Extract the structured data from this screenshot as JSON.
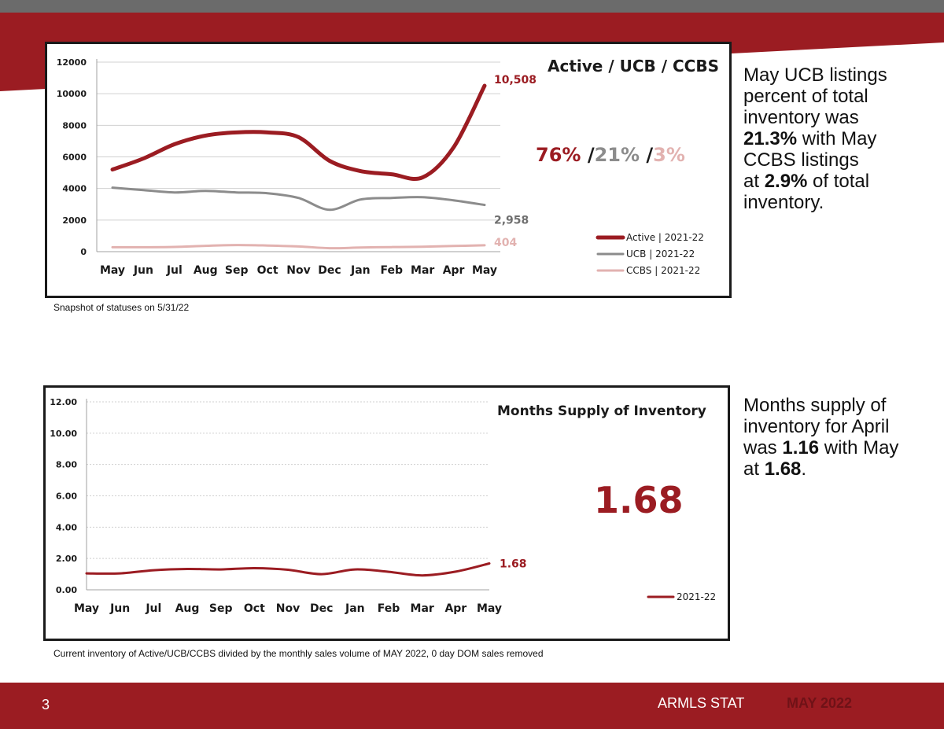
{
  "colors": {
    "brand_red": "#9b1c22",
    "active": "#9b1c22",
    "ucb": "#8c8c8c",
    "ccbs": "#e2b2b0",
    "grey_bar": "#6b6b6b"
  },
  "chart1": {
    "title": "Active / UCB / CCBS",
    "pct_active": "76%",
    "pct_ucb": "21%",
    "pct_ccbs": "3%",
    "slash": "/",
    "note": "Snapshot of statuses on 5/31/22"
  },
  "chart2": {
    "title": "Months Supply of Inventory",
    "big_value": "1.68",
    "note": "Current inventory of Active/UCB/CCBS divided by the monthly sales volume of MAY 2022, 0 day DOM sales removed"
  },
  "side1": {
    "line1": "May UCB listings",
    "line2": "percent of total",
    "line3": "inventory was",
    "bold1": "21.3%",
    "text1": " with May",
    "line5": "CCBS listings",
    "line6a": "at ",
    "bold2": "2.9%",
    "line6b": " of total",
    "line7": "inventory."
  },
  "side2": {
    "line1": "Months supply of",
    "line2": "inventory for April",
    "line3a": "was ",
    "bold1": "1.16",
    "line3b": " with May",
    "line4a": "at ",
    "bold2": "1.68",
    "line4b": "."
  },
  "footer": {
    "page": "3",
    "brand": "ARMLS STAT",
    "month": "MAY 2022"
  },
  "chart_data": [
    {
      "type": "line",
      "title": "Active / UCB / CCBS",
      "categories": [
        "May",
        "Jun",
        "Jul",
        "Aug",
        "Sep",
        "Oct",
        "Nov",
        "Dec",
        "Jan",
        "Feb",
        "Mar",
        "Apr",
        "May"
      ],
      "ylim": [
        0,
        12000
      ],
      "yticks": [
        "0",
        "2000",
        "4000",
        "6000",
        "8000",
        "10000",
        "12000"
      ],
      "grid": true,
      "legend_position": "bottom-right",
      "series": [
        {
          "name": "Active | 2021-22",
          "values": [
            5200,
            5900,
            6800,
            7350,
            7550,
            7550,
            7250,
            5750,
            5100,
            4900,
            4700,
            6600,
            10508
          ],
          "end_label": "10,508"
        },
        {
          "name": "UCB | 2021-22",
          "values": [
            4050,
            3900,
            3750,
            3850,
            3750,
            3700,
            3400,
            2650,
            3300,
            3400,
            3450,
            3250,
            2958
          ],
          "end_label": "2,958"
        },
        {
          "name": "CCBS | 2021-22",
          "values": [
            280,
            280,
            300,
            370,
            420,
            390,
            330,
            220,
            260,
            290,
            310,
            360,
            404
          ],
          "end_label": "404"
        }
      ]
    },
    {
      "type": "line",
      "title": "Months Supply of Inventory",
      "categories": [
        "May",
        "Jun",
        "Jul",
        "Aug",
        "Sep",
        "Oct",
        "Nov",
        "Dec",
        "Jan",
        "Feb",
        "Mar",
        "Apr",
        "May"
      ],
      "ylim": [
        0,
        12
      ],
      "yticks": [
        "0.00",
        "2.00",
        "4.00",
        "6.00",
        "8.00",
        "10.00",
        "12.00"
      ],
      "grid": true,
      "legend_position": "bottom-right",
      "series": [
        {
          "name": "2021-22",
          "values": [
            1.05,
            1.05,
            1.25,
            1.33,
            1.3,
            1.38,
            1.28,
            1.0,
            1.3,
            1.15,
            0.92,
            1.16,
            1.68
          ],
          "end_label": "1.68"
        }
      ]
    }
  ]
}
